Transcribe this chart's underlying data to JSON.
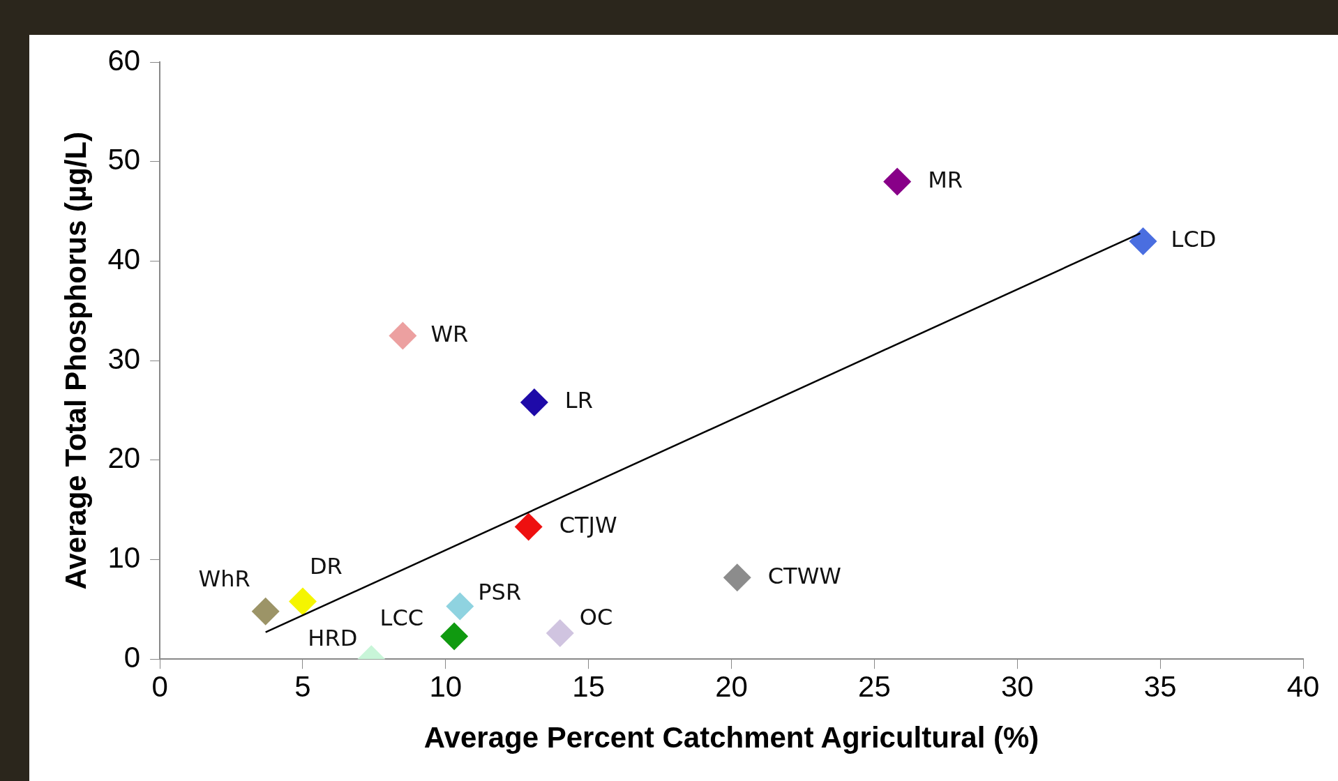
{
  "chart_data": {
    "type": "scatter",
    "xlabel": "Average Percent Catchment Agricultural (%)",
    "ylabel": "Average Total Phosphorus (µg/L)",
    "xlim": [
      0,
      40
    ],
    "xticks": [
      0,
      5,
      10,
      15,
      20,
      25,
      30,
      35,
      40
    ],
    "ylim": [
      0,
      60
    ],
    "yticks": [
      0,
      10,
      20,
      30,
      40,
      50,
      60
    ],
    "grid": false,
    "legend": false,
    "series": [
      {
        "type": "scatter",
        "marker": "diamond",
        "x": [
          3.7,
          5.0,
          7.4,
          10.3,
          10.5,
          14.0,
          12.9,
          20.2,
          13.1,
          8.5,
          25.8,
          34.4
        ],
        "values": [
          4.8,
          5.8,
          0,
          2.3,
          5.3,
          2.6,
          13.3,
          8.2,
          25.8,
          32.5,
          48,
          42
        ],
        "colors": [
          "#9c9467",
          "#f5f500",
          "#c8f5d8",
          "#109a10",
          "#8fd3e0",
          "#d0c4e0",
          "#ee1010",
          "#8c8c8c",
          "#1e0aa8",
          "#eca0a0",
          "#880088",
          "#4a6ee0"
        ]
      },
      {
        "type": "line",
        "marker": "none",
        "line_style": "solid",
        "color": "#000000",
        "x": [
          3.7,
          34.3
        ],
        "values": [
          2.7,
          42.8
        ]
      }
    ],
    "annotations": [
      {
        "text": "WhR",
        "x": 3.7,
        "y": 4.8
      },
      {
        "text": "DR",
        "x": 5.0,
        "y": 5.8
      },
      {
        "text": "HRD",
        "x": 7.4,
        "y": 0
      },
      {
        "text": "LCC",
        "x": 10.3,
        "y": 2.3
      },
      {
        "text": "PSR",
        "x": 10.5,
        "y": 5.3
      },
      {
        "text": "OC",
        "x": 14.0,
        "y": 2.6
      },
      {
        "text": "CTJW",
        "x": 12.9,
        "y": 13.3
      },
      {
        "text": "CTWW",
        "x": 20.2,
        "y": 8.2
      },
      {
        "text": "LR",
        "x": 13.1,
        "y": 25.8
      },
      {
        "text": "WR",
        "x": 8.5,
        "y": 32.5
      },
      {
        "text": "MR",
        "x": 25.8,
        "y": 48
      },
      {
        "text": "LCD",
        "x": 34.4,
        "y": 42
      }
    ]
  }
}
